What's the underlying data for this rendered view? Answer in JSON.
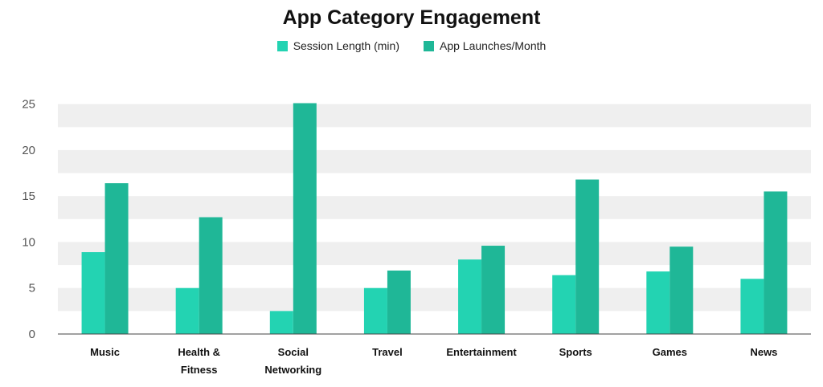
{
  "chart_data": {
    "type": "bar",
    "title": "App Category Engagement",
    "xlabel": "",
    "ylabel": "",
    "ylim": [
      0,
      27.5
    ],
    "yticks": [
      0,
      5,
      10,
      15,
      20,
      25
    ],
    "grid": "alternating horizontal bands",
    "legend_position": "top-center",
    "categories": [
      [
        "Music"
      ],
      [
        "Health &",
        "Fitness"
      ],
      [
        "Social",
        "Networking"
      ],
      [
        "Travel"
      ],
      [
        "Entertainment"
      ],
      [
        "Sports"
      ],
      [
        "Games"
      ],
      [
        "News"
      ]
    ],
    "series": [
      {
        "name": "Session Length (min)",
        "color": "#23d3b2",
        "values": [
          8.9,
          5.0,
          2.5,
          5.0,
          8.1,
          6.4,
          6.8,
          6.0
        ]
      },
      {
        "name": "App Launches/Month",
        "color": "#1fb797",
        "values": [
          16.4,
          12.7,
          25.1,
          6.9,
          9.6,
          16.8,
          9.5,
          15.5
        ]
      }
    ]
  }
}
